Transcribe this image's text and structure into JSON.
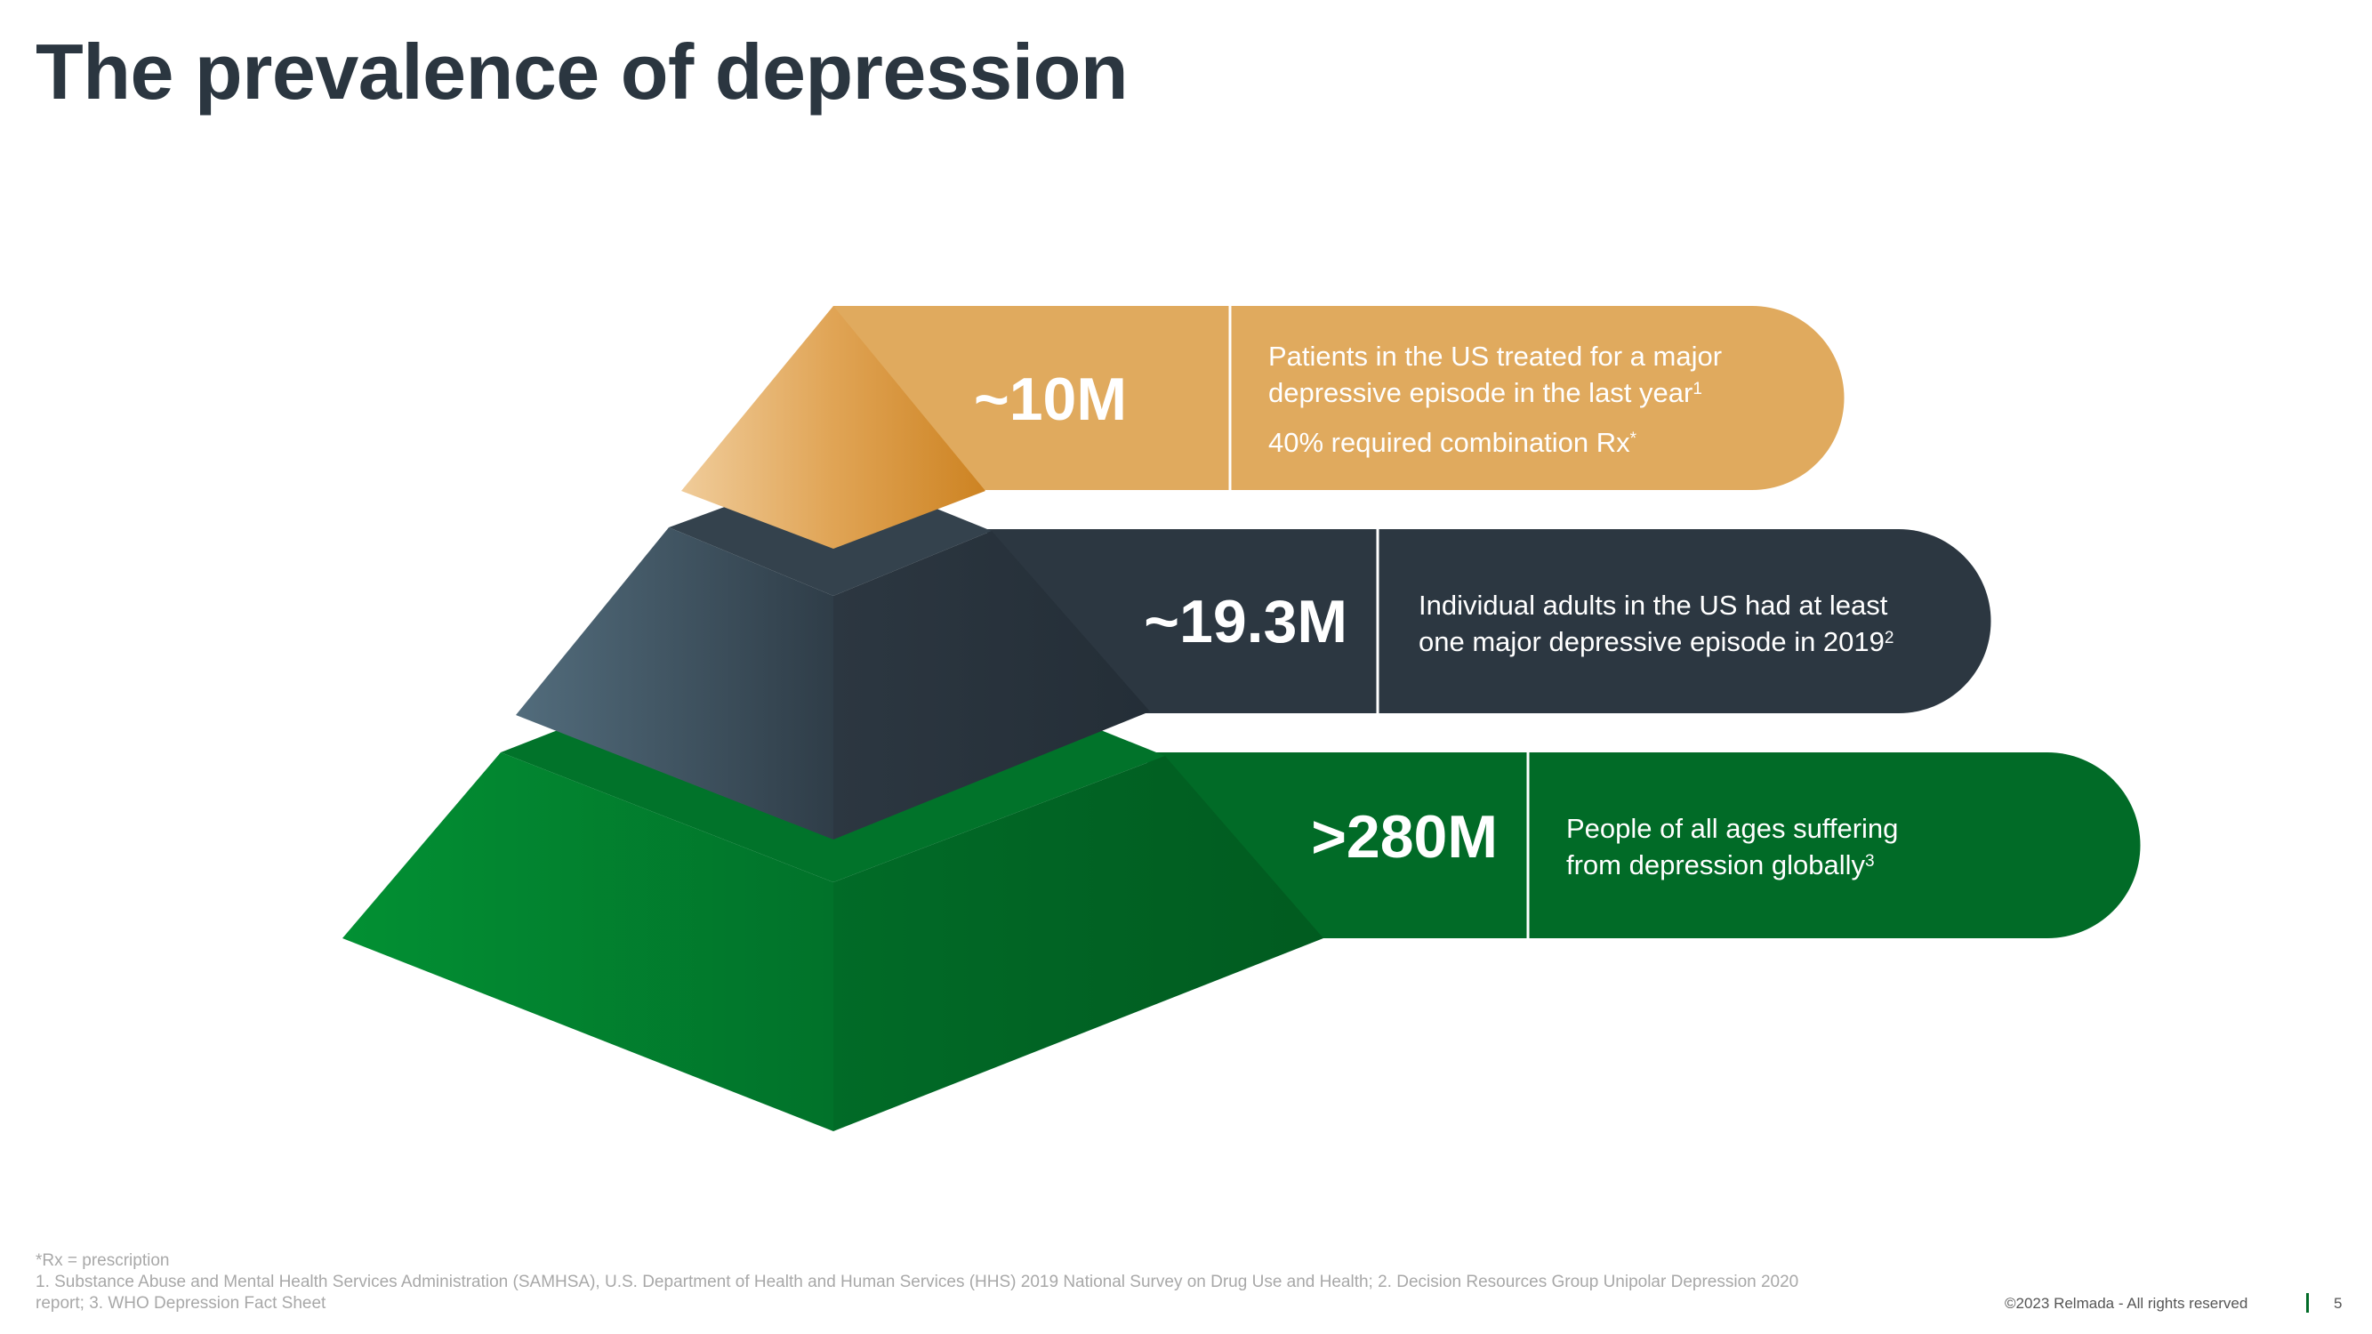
{
  "title": "The prevalence of depression",
  "colors": {
    "tier1": "#e0aa5e",
    "tier2": "#2c3741",
    "tier3": "#016b27",
    "title": "#2b3640"
  },
  "tiers": [
    {
      "value": "~10M",
      "lines": [
        "Patients in the US treated for a major",
        "depressive episode in the last year"
      ],
      "line2_sup": "1",
      "extra": "40% required combination Rx",
      "extra_sup": "*"
    },
    {
      "value": "~19.3M",
      "lines": [
        "Individual adults in the US had at least",
        "one major depressive episode in 2019"
      ],
      "line2_sup": "2"
    },
    {
      "value": ">280M",
      "lines": [
        "People of all ages suffering",
        "from depression globally"
      ],
      "line2_sup": "3"
    }
  ],
  "footnotes": {
    "rx": "*Rx = prescription",
    "refs_line1": "1. Substance Abuse and Mental Health Services Administration (SAMHSA), U.S. Department of Health and Human Services (HHS) 2019 National Survey on Drug Use and Health; 2. Decision Resources Group Unipolar Depression 2020",
    "refs_line2": "report; 3. WHO Depression Fact Sheet"
  },
  "footer": {
    "copyright": "©2023 Relmada - All rights reserved",
    "page": "5"
  }
}
